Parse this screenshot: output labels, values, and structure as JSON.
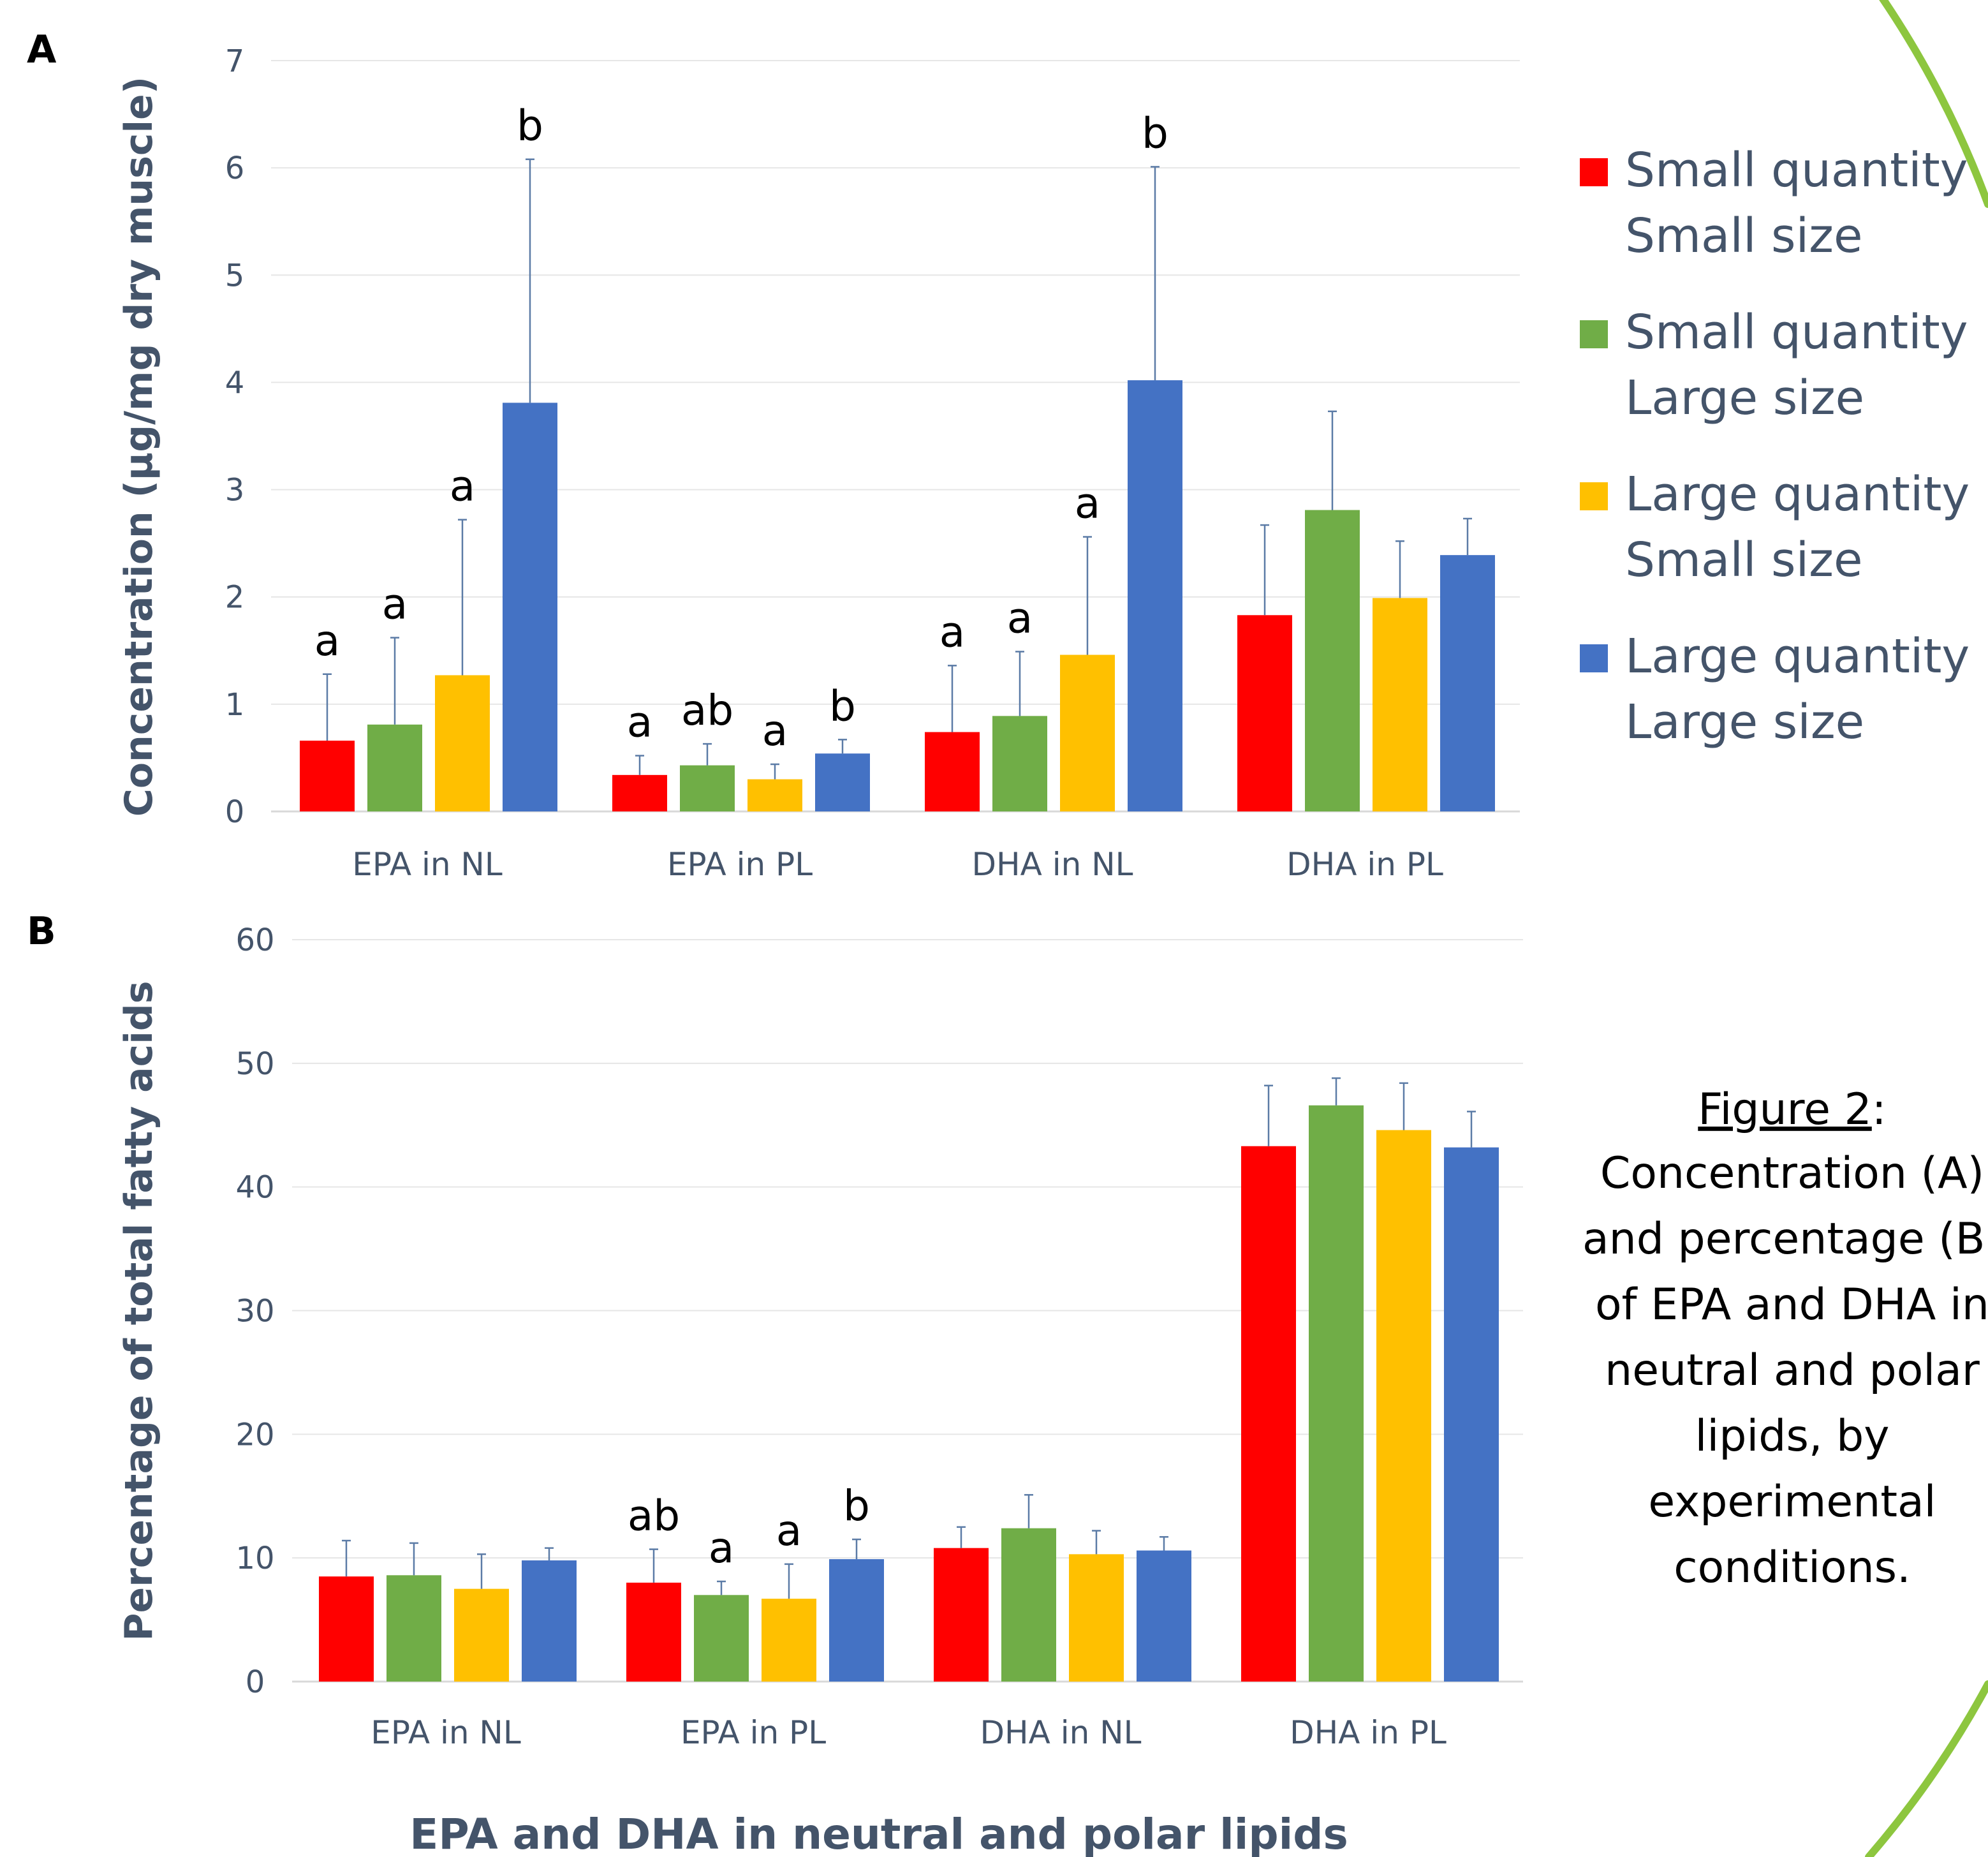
{
  "figure": {
    "caption_title": "Figure 2",
    "caption_title_suffix": ":",
    "caption_lines": [
      "Concentration (A)",
      "and percentage (B)",
      "of EPA and DHA in",
      "neutral and polar",
      "lipids, by",
      "experimental",
      "conditions."
    ],
    "shared_xlabel": "EPA and DHA in neutral and polar lipids",
    "accent_color": "#8DC63F"
  },
  "legend": {
    "entries": [
      {
        "line1": "Small quantity",
        "line2": "Small size",
        "color": "#FF0000"
      },
      {
        "line1": "Small quantity",
        "line2": "Large size",
        "color": "#70AD47"
      },
      {
        "line1": "Large quantity",
        "line2": "Small size",
        "color": "#FFC000"
      },
      {
        "line1": "Large quantity",
        "line2": "Large size",
        "color": "#4472C4"
      }
    ]
  },
  "chart_data": [
    {
      "panel": "A",
      "type": "bar",
      "title": "",
      "ylabel": "Concentration (µg/mg dry muscle)",
      "xlabel": "",
      "ylim": [
        0,
        7
      ],
      "yticks": [
        0,
        1,
        2,
        3,
        4,
        5,
        6,
        7
      ],
      "grid": true,
      "legend_position": "right",
      "categories": [
        "EPA in NL",
        "EPA in PL",
        "DHA in NL",
        "DHA in PL"
      ],
      "series": [
        {
          "name": "Small quantity Small size",
          "color": "#FF0000",
          "values": [
            0.66,
            0.34,
            0.74,
            1.83
          ],
          "errors": [
            0.62,
            0.18,
            0.62,
            0.84
          ],
          "labels": [
            "a",
            "a",
            "a",
            ""
          ]
        },
        {
          "name": "Small quantity Large size",
          "color": "#70AD47",
          "values": [
            0.81,
            0.43,
            0.89,
            2.81
          ],
          "errors": [
            0.81,
            0.2,
            0.6,
            0.92
          ],
          "labels": [
            "a",
            "ab",
            "a",
            ""
          ]
        },
        {
          "name": "Large quantity Small size",
          "color": "#FFC000",
          "values": [
            1.27,
            0.3,
            1.46,
            1.99
          ],
          "errors": [
            1.45,
            0.14,
            1.1,
            0.53
          ],
          "labels": [
            "a",
            "a",
            "a",
            ""
          ]
        },
        {
          "name": "Large quantity Large size",
          "color": "#4472C4",
          "values": [
            3.81,
            0.54,
            4.02,
            2.39
          ],
          "errors": [
            2.27,
            0.13,
            1.99,
            0.34
          ],
          "labels": [
            "b",
            "b",
            "b",
            ""
          ]
        }
      ]
    },
    {
      "panel": "B",
      "type": "bar",
      "title": "",
      "ylabel": "Percentage of total fatty acids",
      "xlabel": "EPA and DHA in neutral and polar lipids",
      "ylim": [
        0,
        60
      ],
      "yticks": [
        0,
        10,
        20,
        30,
        40,
        50,
        60
      ],
      "grid": true,
      "categories": [
        "EPA in NL",
        "EPA in PL",
        "DHA in NL",
        "DHA in PL"
      ],
      "series": [
        {
          "name": "Small quantity Small size",
          "color": "#FF0000",
          "values": [
            8.5,
            8.0,
            10.8,
            43.3
          ],
          "errors": [
            2.9,
            2.7,
            1.7,
            4.9
          ],
          "labels": [
            "",
            "ab",
            "",
            ""
          ]
        },
        {
          "name": "Small quantity Large size",
          "color": "#70AD47",
          "values": [
            8.6,
            7.0,
            12.4,
            46.6
          ],
          "errors": [
            2.6,
            1.1,
            2.7,
            2.2
          ],
          "labels": [
            "",
            "a",
            "",
            ""
          ]
        },
        {
          "name": "Large quantity Small size",
          "color": "#FFC000",
          "values": [
            7.5,
            6.7,
            10.3,
            44.6
          ],
          "errors": [
            2.8,
            2.8,
            1.9,
            3.8
          ],
          "labels": [
            "",
            "a",
            "",
            ""
          ]
        },
        {
          "name": "Large quantity Large size",
          "color": "#4472C4",
          "values": [
            9.8,
            9.9,
            10.6,
            43.2
          ],
          "errors": [
            1.0,
            1.6,
            1.1,
            2.9
          ],
          "labels": [
            "",
            "b",
            "",
            ""
          ]
        }
      ]
    }
  ]
}
